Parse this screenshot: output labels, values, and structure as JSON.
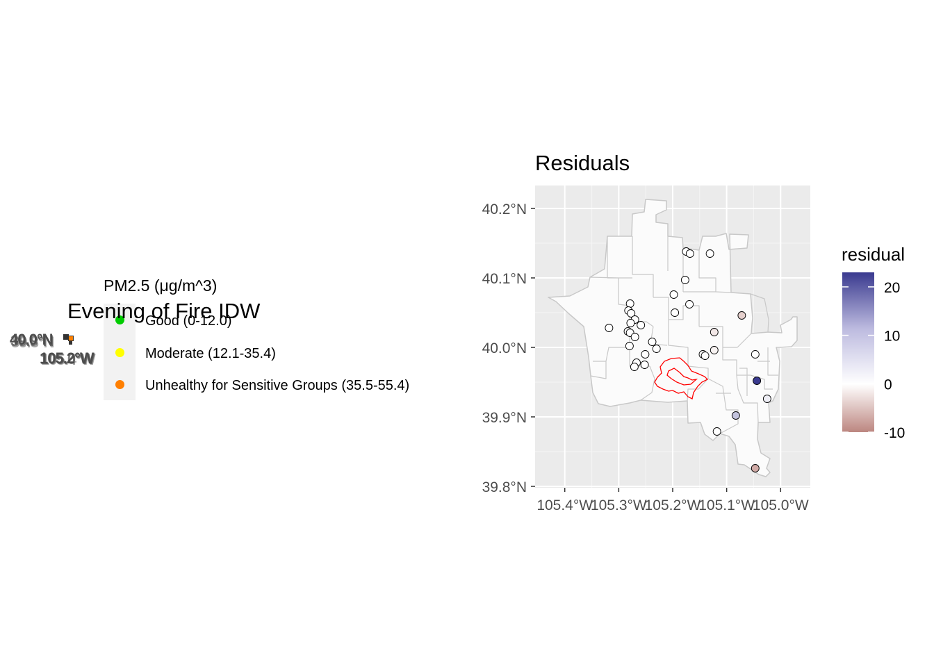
{
  "left_panel": {
    "title": "Evening of Fire IDW",
    "legend": {
      "title": "PM2.5 (μg/m^3)",
      "items": [
        {
          "label": "Good (0-12.0)",
          "color": "#00cc00"
        },
        {
          "label": "Moderate (12.1-35.4)",
          "color": "#ffff00"
        },
        {
          "label": "Unhealthy for Sensitive Groups (35.5-55.4)",
          "color": "#ff7f00"
        }
      ]
    },
    "collapsed_axis": {
      "lat_labels": [
        "40.0°N",
        "39.9°N",
        "39.8°N"
      ],
      "lon_labels": [
        "105.2°W",
        "105.0°W",
        "105.4°W"
      ]
    }
  },
  "right_panel": {
    "title": "Residuals",
    "chart_data": {
      "type": "scatter",
      "title": "Residuals",
      "xlabel": "",
      "ylabel": "",
      "x_ticks": [
        "105.4°W",
        "105.3°W",
        "105.2°W",
        "105.1°W",
        "105.0°W"
      ],
      "y_ticks": [
        "39.8°N",
        "39.9°N",
        "40.0°N",
        "40.1°N",
        "40.2°N"
      ],
      "xlim": [
        -105.455,
        -104.945
      ],
      "ylim": [
        39.798,
        40.233
      ],
      "grid": true,
      "legend": {
        "title": "residual",
        "position": "right",
        "ticks": [
          20,
          10,
          0,
          -10
        ],
        "range": [
          -10,
          23
        ],
        "low_color": "#bc8680",
        "mid_color": "#ffffff",
        "high_color": "#3a3a8f"
      },
      "points": [
        {
          "lon": -105.175,
          "lat": 40.138,
          "residual": 0
        },
        {
          "lon": -105.168,
          "lat": 40.135,
          "residual": 0
        },
        {
          "lon": -105.131,
          "lat": 40.135,
          "residual": 0
        },
        {
          "lon": -105.177,
          "lat": 40.097,
          "residual": 0
        },
        {
          "lon": -105.198,
          "lat": 40.076,
          "residual": 0
        },
        {
          "lon": -105.169,
          "lat": 40.062,
          "residual": 0
        },
        {
          "lon": -105.196,
          "lat": 40.05,
          "residual": 0
        },
        {
          "lon": -105.279,
          "lat": 40.063,
          "residual": 0
        },
        {
          "lon": -105.282,
          "lat": 40.053,
          "residual": 0
        },
        {
          "lon": -105.277,
          "lat": 40.049,
          "residual": 0
        },
        {
          "lon": -105.27,
          "lat": 40.04,
          "residual": 0
        },
        {
          "lon": -105.278,
          "lat": 40.035,
          "residual": 0
        },
        {
          "lon": -105.259,
          "lat": 40.032,
          "residual": 0
        },
        {
          "lon": -105.318,
          "lat": 40.028,
          "residual": 0
        },
        {
          "lon": -105.283,
          "lat": 40.023,
          "residual": 0
        },
        {
          "lon": -105.279,
          "lat": 40.021,
          "residual": 0
        },
        {
          "lon": -105.27,
          "lat": 40.015,
          "residual": 0
        },
        {
          "lon": -105.238,
          "lat": 40.008,
          "residual": 0
        },
        {
          "lon": -105.28,
          "lat": 40.002,
          "residual": 0
        },
        {
          "lon": -105.23,
          "lat": 39.998,
          "residual": 0
        },
        {
          "lon": -105.251,
          "lat": 39.99,
          "residual": 0
        },
        {
          "lon": -105.267,
          "lat": 39.978,
          "residual": 0
        },
        {
          "lon": -105.252,
          "lat": 39.975,
          "residual": 0
        },
        {
          "lon": -105.271,
          "lat": 39.972,
          "residual": 0
        },
        {
          "lon": -105.144,
          "lat": 39.99,
          "residual": 0
        },
        {
          "lon": -105.14,
          "lat": 39.988,
          "residual": 0
        },
        {
          "lon": -105.123,
          "lat": 40.022,
          "residual": -2
        },
        {
          "lon": -105.123,
          "lat": 39.996,
          "residual": -1
        },
        {
          "lon": -105.072,
          "lat": 40.046,
          "residual": -4
        },
        {
          "lon": -105.047,
          "lat": 39.99,
          "residual": 0
        },
        {
          "lon": -105.044,
          "lat": 39.952,
          "residual": 23
        },
        {
          "lon": -105.025,
          "lat": 39.926,
          "residual": 2
        },
        {
          "lon": -105.083,
          "lat": 39.902,
          "residual": 7
        },
        {
          "lon": -105.118,
          "lat": 39.879,
          "residual": 0
        },
        {
          "lon": -105.047,
          "lat": 39.826,
          "residual": -7
        }
      ]
    }
  }
}
